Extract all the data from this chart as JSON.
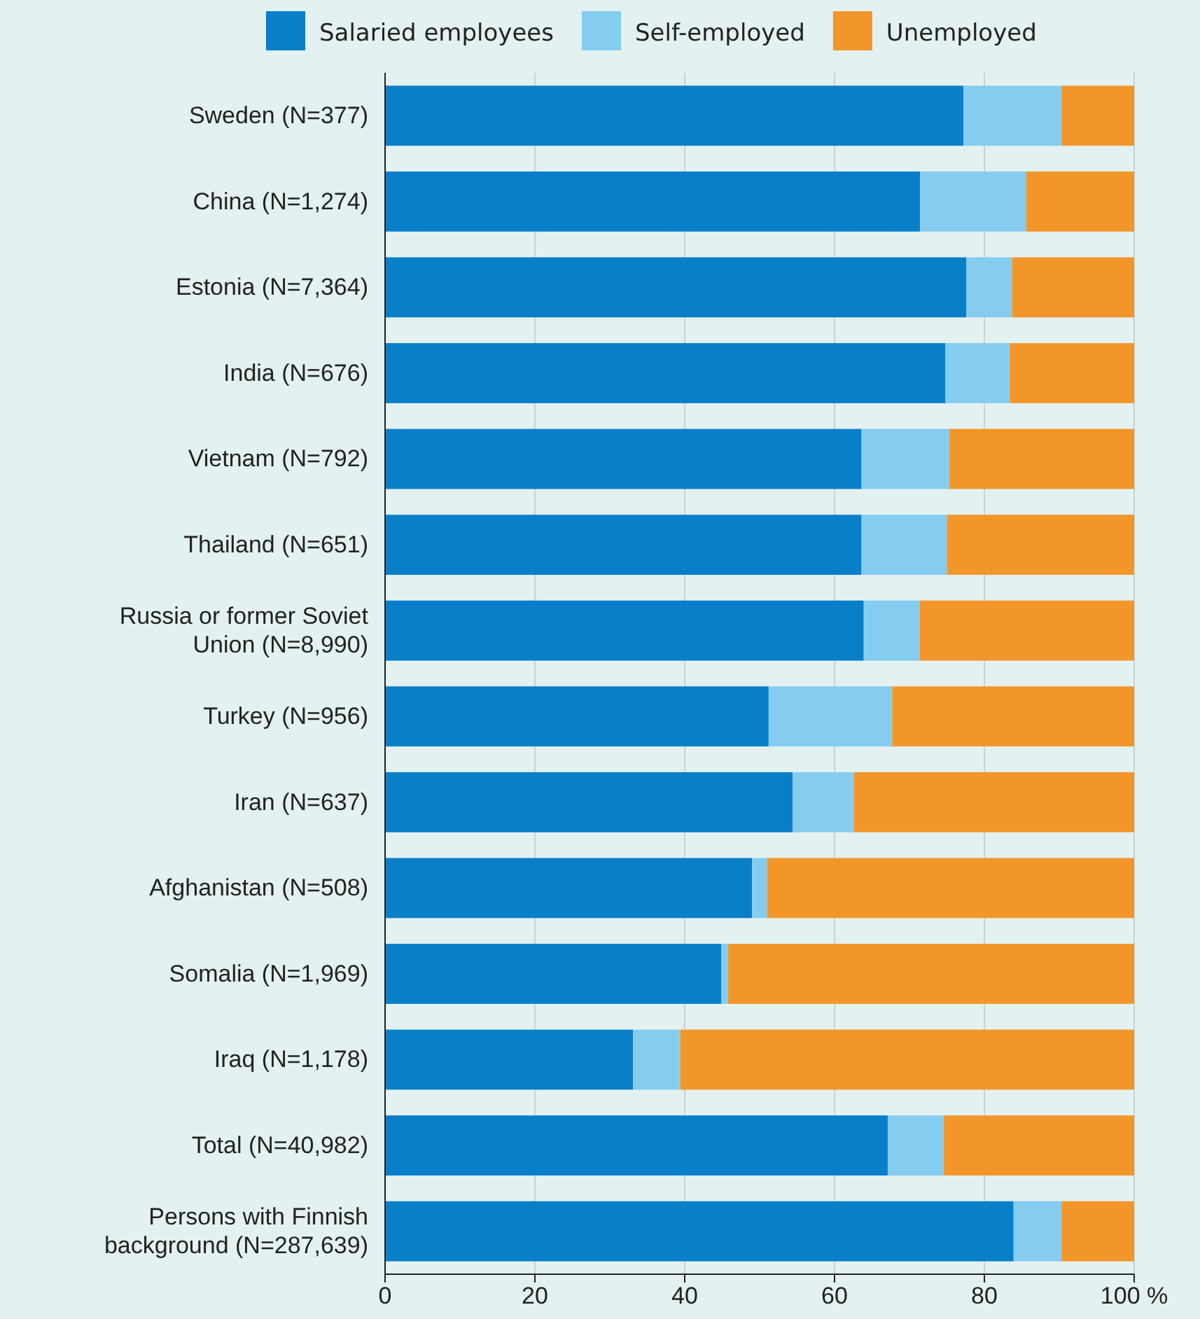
{
  "chart_data": {
    "type": "bar",
    "orientation": "horizontal",
    "stacked": true,
    "categories": [
      "Sweden (N=377)",
      "China (N=1,274)",
      "Estonia (N=7,364)",
      "India (N=676)",
      "Vietnam (N=792)",
      "Thailand (N=651)",
      "Russia or former Soviet Union (N=8,990)",
      "Turkey (N=956)",
      "Iran (N=637)",
      "Afghanistan (N=508)",
      "Somalia (N=1,969)",
      "Iraq (N=1,178)",
      "Total (N=40,982)",
      "Persons with Finnish background (N=287,639)"
    ],
    "series": [
      {
        "name": "Salaried employees",
        "color": "#0a7fc9",
        "values": [
          77.2,
          71.4,
          77.6,
          74.8,
          63.6,
          63.6,
          63.9,
          51.2,
          54.4,
          49.0,
          44.9,
          33.1,
          67.1,
          83.9
        ]
      },
      {
        "name": "Self-employed",
        "color": "#85cdf0",
        "values": [
          13.1,
          14.2,
          6.1,
          8.6,
          11.7,
          11.4,
          7.5,
          16.5,
          8.2,
          2.0,
          0.9,
          6.3,
          7.5,
          6.4
        ]
      },
      {
        "name": "Unemployed",
        "color": "#f3962a",
        "values": [
          9.7,
          14.4,
          16.3,
          16.6,
          24.7,
          25.0,
          28.6,
          32.3,
          37.4,
          49.0,
          54.2,
          60.6,
          25.4,
          9.7
        ]
      }
    ],
    "xlim": [
      0,
      100
    ],
    "xticks": [
      0,
      20,
      40,
      60,
      80,
      {
        "value": 100,
        "label": "100 %"
      }
    ],
    "grid": "x",
    "legend": "top"
  }
}
